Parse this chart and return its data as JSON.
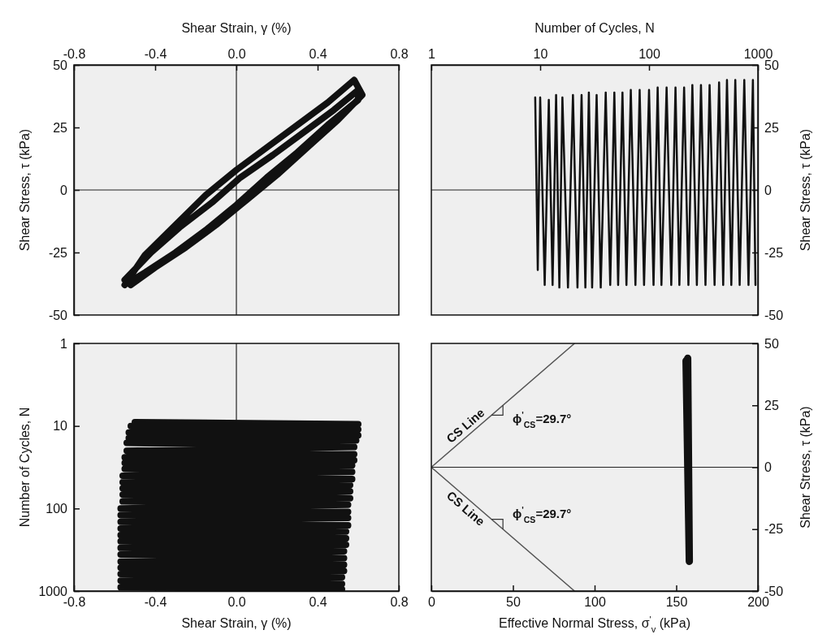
{
  "chart_data": [
    {
      "type": "line",
      "xlim": [
        -0.8,
        0.8
      ],
      "xticks": [
        -0.8,
        -0.4,
        {
          "value": 0,
          "label": "0.0"
        },
        0.4,
        0.8
      ],
      "xlabel": "Shear Strain, γ (%)",
      "ylim": [
        -50,
        50
      ],
      "yticks": [
        -50,
        -25,
        0,
        25,
        50
      ],
      "ylabel": "Shear Stress, τ (kPa)",
      "ref_lines": [
        {
          "axis": "x",
          "value": 0
        },
        {
          "axis": "y",
          "value": 0
        }
      ],
      "series": [
        {
          "color": "#111111",
          "x": [
            -0.55,
            -0.45,
            -0.3,
            -0.15,
            0,
            0.15,
            0.3,
            0.45,
            0.58,
            0.62,
            0.5,
            0.35,
            0.2,
            0.05,
            -0.1,
            -0.25,
            -0.4,
            -0.52,
            -0.55,
            -0.42,
            -0.28,
            -0.12,
            0.02,
            0.18,
            0.33,
            0.48,
            0.6,
            0.6,
            0.45,
            0.3,
            0.15,
            0,
            -0.15,
            -0.3,
            -0.45,
            -0.53
          ],
          "values": [
            -38,
            -26,
            -14,
            -2,
            8,
            17,
            26,
            35,
            44,
            38,
            28,
            17,
            6,
            -4,
            -14,
            -23,
            -31,
            -38,
            -36,
            -25,
            -15,
            -5,
            5,
            14,
            23,
            32,
            40,
            36,
            26,
            15,
            5,
            -6,
            -16,
            -25,
            -33,
            -37
          ]
        }
      ]
    },
    {
      "type": "line",
      "xlim": [
        1,
        1000
      ],
      "xticks": [
        1,
        10,
        100,
        1000
      ],
      "xlabel": "Number of Cycles, N",
      "log": "x",
      "ylim": [
        -50,
        50
      ],
      "yticks": [
        -50,
        -25,
        0,
        25,
        50
      ],
      "ylabel": "Shear Stress, τ (kPa)",
      "ref_lines": [
        {
          "axis": "y",
          "value": 0
        }
      ],
      "series": [
        {
          "color": "#111111",
          "x": [
            9,
            9.5,
            10,
            11,
            12,
            13,
            14,
            15,
            16,
            18,
            20,
            22,
            24,
            26,
            28,
            30,
            33,
            36,
            40,
            44,
            48,
            52,
            57,
            62,
            68,
            75,
            82,
            90,
            100,
            110,
            120,
            130,
            145,
            160,
            175,
            190,
            210,
            230,
            250,
            275,
            300,
            330,
            360,
            400,
            440,
            480,
            520,
            570,
            620,
            680,
            750,
            820,
            900,
            950
          ],
          "values": [
            37,
            -32,
            37,
            -38,
            36,
            -38,
            38,
            -39,
            37,
            -39,
            38,
            -39,
            38,
            -39,
            39,
            -39,
            38,
            -39,
            39,
            -38,
            39,
            -38,
            39,
            -38,
            40,
            -38,
            40,
            -38,
            40,
            -38,
            41,
            -38,
            41,
            -38,
            41,
            -38,
            41,
            -38,
            42,
            -38,
            42,
            -38,
            42,
            -38,
            43,
            -38,
            44,
            -38,
            44,
            -38,
            44,
            -38,
            44,
            -38
          ]
        }
      ]
    },
    {
      "type": "line",
      "xlim": [
        -0.8,
        0.8
      ],
      "xticks": [
        -0.8,
        -0.4,
        {
          "value": 0,
          "label": "0.0"
        },
        0.4,
        0.8
      ],
      "xlabel": "Shear Strain, γ (%)",
      "ylim": [
        1000,
        1
      ],
      "yticks": [
        1,
        10,
        100,
        1000
      ],
      "log": "y",
      "ylabel": "Number of Cycles, N",
      "ref_lines": [
        {
          "axis": "x",
          "value": 0
        }
      ],
      "series": [
        {
          "color": "#111111",
          "x": [
            -0.5,
            0.6,
            -0.52,
            0.6,
            -0.53,
            0.6,
            -0.53,
            0.59,
            -0.54,
            0.58,
            -0.54,
            0.58,
            -0.55,
            0.58,
            -0.55,
            0.57,
            -0.55,
            0.57,
            -0.56,
            0.57,
            -0.56,
            0.56,
            -0.56,
            0.56,
            -0.56,
            0.56,
            -0.56,
            0.55,
            -0.57,
            0.55,
            -0.57,
            0.55,
            -0.57,
            0.55,
            -0.57,
            0.54,
            -0.57,
            0.54,
            -0.57,
            0.54,
            -0.57,
            0.53,
            -0.57,
            0.53,
            -0.57,
            0.53,
            -0.57,
            0.53,
            -0.57,
            0.52,
            -0.57,
            0.52,
            -0.57,
            0.52
          ],
          "values": [
            9,
            9.5,
            10,
            11,
            12,
            13,
            14,
            15,
            16,
            18,
            20,
            22,
            24,
            26,
            28,
            30,
            33,
            36,
            40,
            44,
            48,
            52,
            57,
            62,
            68,
            75,
            82,
            90,
            100,
            110,
            120,
            130,
            145,
            160,
            175,
            190,
            210,
            230,
            250,
            275,
            300,
            330,
            360,
            400,
            440,
            480,
            520,
            570,
            620,
            680,
            750,
            820,
            900,
            950
          ]
        }
      ]
    },
    {
      "type": "line",
      "xlim": [
        0,
        200
      ],
      "xticks": [
        0,
        50,
        100,
        150,
        200
      ],
      "xlabel": "Effective Normal Stress, σ$^{'}$$_{v}$ (kPa)",
      "ylim": [
        -50,
        50
      ],
      "yticks": [
        -50,
        -25,
        0,
        25,
        50
      ],
      "ylabel": "Shear Stress, τ (kPa)",
      "ref_lines": [
        {
          "axis": "y",
          "value": 0
        }
      ],
      "annotations": [
        "CS Line",
        "ϕ$^{'}$$_{CS}$=29.7°",
        "CS Line",
        "ϕ$^{'}$$_{CS}$=29.7°"
      ],
      "series": [
        {
          "color": "#555555",
          "x": [
            0,
            87.7
          ],
          "values": [
            0,
            50
          ]
        },
        {
          "color": "#555555",
          "x": [
            0,
            87.7
          ],
          "values": [
            0,
            -50
          ]
        },
        {
          "color": "#111111",
          "x": [
            157,
            158,
            156,
            158,
            157
          ],
          "values": [
            44,
            -38,
            43,
            -38,
            40
          ]
        }
      ]
    }
  ]
}
